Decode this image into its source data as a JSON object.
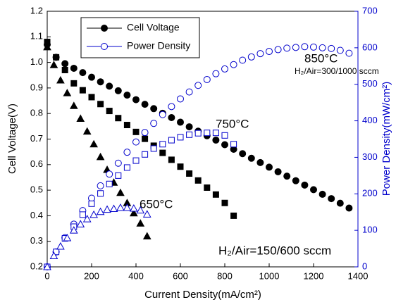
{
  "chart_data": {
    "type": "scatter",
    "x_label": "Current Density(mA/cm²)",
    "y_label": "Cell Voltage(V)",
    "y2_label": "Power Density(mW/cm²)",
    "xlim": [
      0,
      1400
    ],
    "xticks": [
      0,
      200,
      400,
      600,
      800,
      1000,
      1200,
      1400
    ],
    "ylim": [
      0.2,
      1.2
    ],
    "yticks": [
      0.2,
      0.3,
      0.4,
      0.5,
      0.6,
      0.7,
      0.8,
      0.9,
      {
        "value": 1,
        "label": "1.0"
      },
      1.1,
      1.2
    ],
    "y2lim": [
      0,
      700
    ],
    "y2ticks": [
      0,
      100,
      200,
      300,
      400,
      500,
      600,
      700
    ],
    "y2_color": "#0000cc",
    "legend_position": "upper left",
    "legend": [
      {
        "label": "Cell Voltage",
        "marker": "circle",
        "filled": true,
        "color": "#000000"
      },
      {
        "label": "Power Density",
        "marker": "circle",
        "filled": false,
        "color": "#0000cc"
      }
    ],
    "annotations": [
      {
        "text": "850°C",
        "size": "large"
      },
      {
        "text": "H₂/Air=300/1000 sccm",
        "size": "small"
      },
      {
        "text": "750°C",
        "size": "large"
      },
      {
        "text": "650°C",
        "size": "large"
      },
      {
        "text": "H₂/Air=150/600 sccm",
        "size": "large"
      }
    ],
    "series": [
      {
        "marker": "circle",
        "filled": true,
        "color": "#000000",
        "axis": "y",
        "x": [
          0,
          40,
          80,
          120,
          160,
          200,
          240,
          280,
          320,
          360,
          400,
          440,
          480,
          520,
          560,
          600,
          640,
          680,
          720,
          760,
          800,
          840,
          880,
          920,
          960,
          1000,
          1040,
          1080,
          1120,
          1160,
          1200,
          1240,
          1280,
          1320,
          1360
        ],
        "values": [
          1.07,
          1.02,
          0.995,
          0.977,
          0.96,
          0.942,
          0.924,
          0.907,
          0.889,
          0.872,
          0.854,
          0.836,
          0.819,
          0.801,
          0.784,
          0.766,
          0.748,
          0.731,
          0.713,
          0.696,
          0.678,
          0.66,
          0.643,
          0.625,
          0.608,
          0.59,
          0.572,
          0.555,
          0.537,
          0.52,
          0.502,
          0.484,
          0.467,
          0.449,
          0.43
        ]
      },
      {
        "marker": "square",
        "filled": true,
        "color": "#000000",
        "axis": "y",
        "x": [
          0,
          40,
          80,
          120,
          160,
          200,
          240,
          280,
          320,
          360,
          400,
          440,
          480,
          520,
          560,
          600,
          640,
          680,
          720,
          760,
          800,
          840
        ],
        "values": [
          1.08,
          1.02,
          0.97,
          0.918,
          0.891,
          0.864,
          0.837,
          0.81,
          0.782,
          0.755,
          0.728,
          0.701,
          0.674,
          0.646,
          0.619,
          0.592,
          0.565,
          0.538,
          0.51,
          0.483,
          0.45,
          0.4
        ]
      },
      {
        "marker": "triangle",
        "filled": true,
        "color": "#000000",
        "axis": "y",
        "x": [
          0,
          30,
          60,
          90,
          120,
          150,
          180,
          210,
          240,
          270,
          300,
          330,
          360,
          390,
          420,
          450
        ],
        "values": [
          1.06,
          0.99,
          0.93,
          0.88,
          0.83,
          0.78,
          0.73,
          0.68,
          0.63,
          0.58,
          0.53,
          0.49,
          0.45,
          0.41,
          0.37,
          0.32
        ]
      },
      {
        "marker": "circle",
        "filled": false,
        "color": "#0000cc",
        "axis": "y2",
        "x": [
          0,
          40,
          80,
          120,
          160,
          200,
          240,
          280,
          320,
          360,
          400,
          440,
          480,
          520,
          560,
          600,
          640,
          680,
          720,
          760,
          800,
          840,
          880,
          920,
          960,
          1000,
          1040,
          1080,
          1120,
          1160,
          1200,
          1240,
          1280,
          1320,
          1360
        ],
        "values": [
          0,
          41,
          80,
          117,
          154,
          188,
          222,
          254,
          284,
          314,
          342,
          368,
          393,
          417,
          439,
          460,
          479,
          497,
          513,
          529,
          542,
          554,
          566,
          575,
          584,
          590,
          595,
          599,
          601,
          603,
          602,
          600,
          598,
          593,
          585
        ]
      },
      {
        "marker": "square",
        "filled": false,
        "color": "#0000cc",
        "axis": "y2",
        "x": [
          0,
          40,
          80,
          120,
          160,
          200,
          240,
          280,
          320,
          360,
          400,
          440,
          480,
          520,
          560,
          600,
          640,
          680,
          720,
          760,
          800,
          840
        ],
        "values": [
          0,
          41,
          78,
          110,
          143,
          173,
          201,
          227,
          250,
          272,
          291,
          308,
          324,
          336,
          347,
          355,
          362,
          366,
          367,
          367,
          360,
          336
        ]
      },
      {
        "marker": "triangle",
        "filled": false,
        "color": "#0000cc",
        "axis": "y2",
        "x": [
          0,
          30,
          60,
          90,
          120,
          150,
          180,
          210,
          240,
          270,
          300,
          330,
          360,
          390,
          420,
          450
        ],
        "values": [
          0,
          30,
          56,
          79,
          100,
          117,
          131,
          143,
          151,
          157,
          159,
          162,
          162,
          160,
          155,
          144
        ]
      }
    ]
  }
}
